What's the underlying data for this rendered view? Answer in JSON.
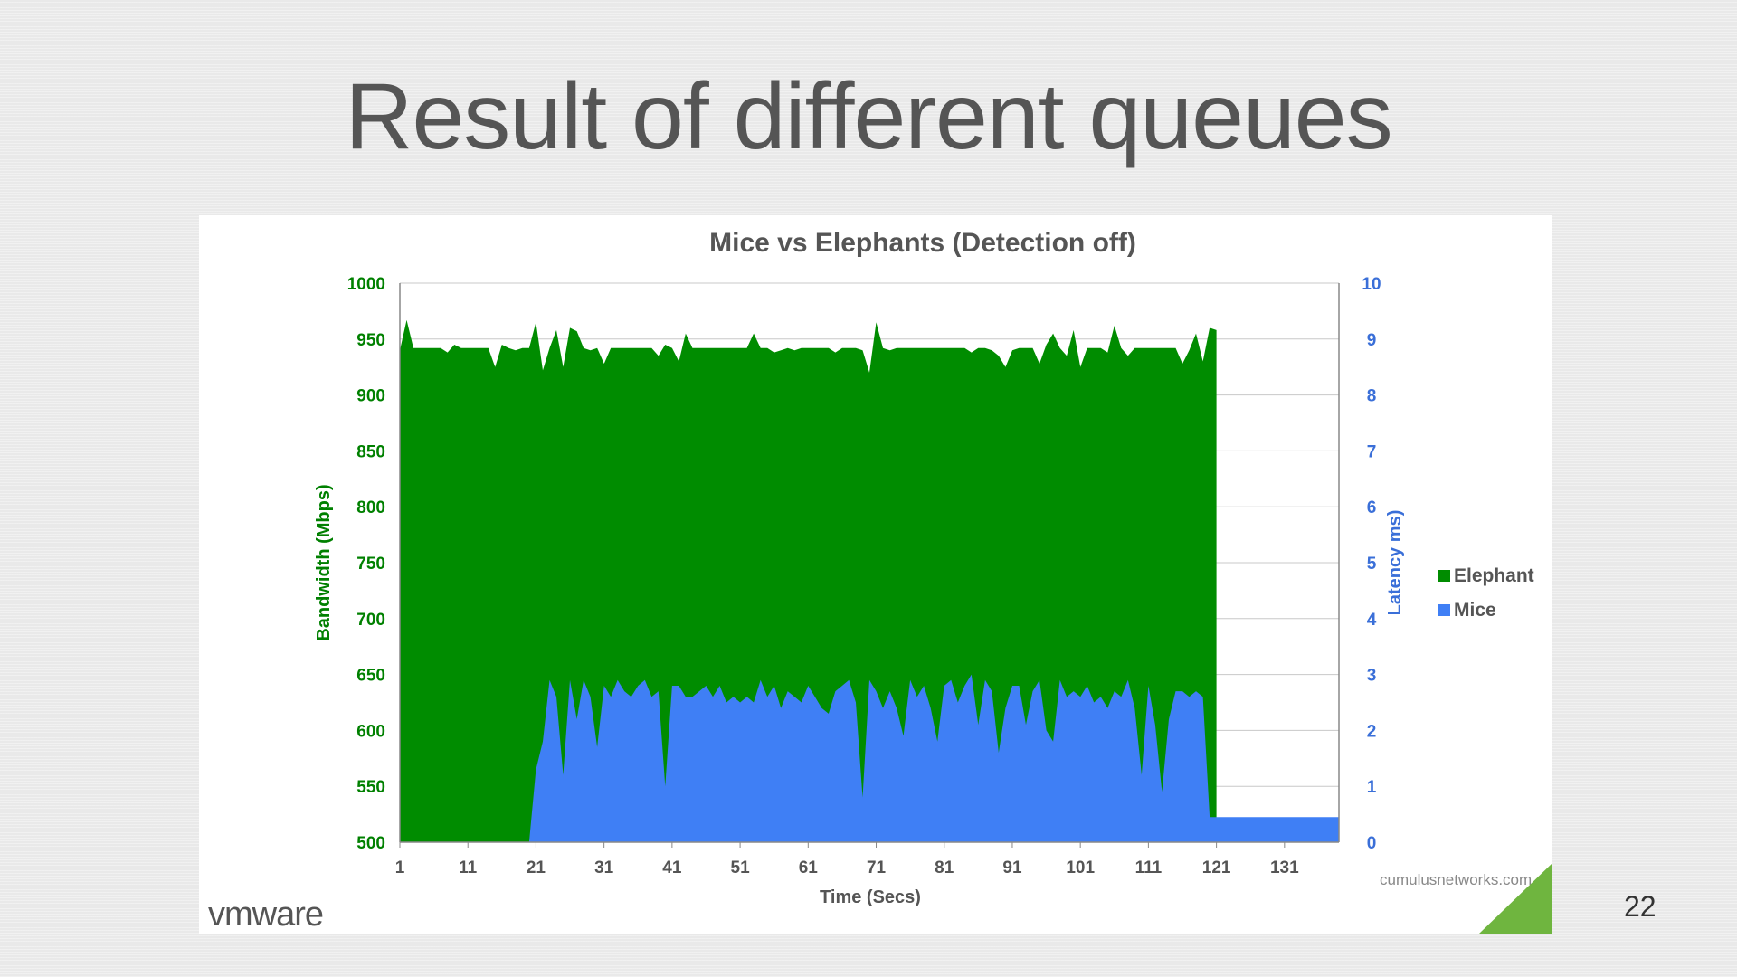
{
  "slide": {
    "title": "Result of different queues",
    "page_number": "22",
    "logo_text": "vmware",
    "credit": "cumulusnetworks.com"
  },
  "colors": {
    "elephant": "#008c00",
    "mice": "#3f7ff5",
    "left_axis": "#008000",
    "right_axis": "#3a6fd8",
    "corner_accent": "#6fb53f"
  },
  "chart_data": {
    "type": "area",
    "title": "Mice vs Elephants (Detection off)",
    "xlabel": "Time (Secs)",
    "ylabel": "Bandwidth (Mbps)",
    "y2label": "Latency ms)",
    "xlim": [
      1,
      139
    ],
    "ylim": [
      500,
      1000
    ],
    "y2lim": [
      0,
      10
    ],
    "x_ticks": [
      "1",
      "11",
      "21",
      "31",
      "41",
      "51",
      "61",
      "71",
      "81",
      "91",
      "101",
      "111",
      "121",
      "131"
    ],
    "y_ticks": [
      "500",
      "550",
      "600",
      "650",
      "700",
      "750",
      "800",
      "850",
      "900",
      "950",
      "1000"
    ],
    "y2_ticks": [
      "0",
      "1",
      "2",
      "3",
      "4",
      "5",
      "6",
      "7",
      "8",
      "9",
      "10"
    ],
    "grid": true,
    "legend_position": "right",
    "series": [
      {
        "name": "Elephant",
        "axis": "left",
        "x": [
          1,
          2,
          3,
          4,
          5,
          6,
          7,
          8,
          9,
          10,
          11,
          12,
          13,
          14,
          15,
          16,
          17,
          18,
          19,
          20,
          21,
          22,
          23,
          24,
          25,
          26,
          27,
          28,
          29,
          30,
          31,
          32,
          33,
          34,
          35,
          36,
          37,
          38,
          39,
          40,
          41,
          42,
          43,
          44,
          45,
          46,
          47,
          48,
          49,
          50,
          51,
          52,
          53,
          54,
          55,
          56,
          57,
          58,
          59,
          60,
          61,
          62,
          63,
          64,
          65,
          66,
          67,
          68,
          69,
          70,
          71,
          72,
          73,
          74,
          75,
          76,
          77,
          78,
          79,
          80,
          81,
          82,
          83,
          84,
          85,
          86,
          87,
          88,
          89,
          90,
          91,
          92,
          93,
          94,
          95,
          96,
          97,
          98,
          99,
          100,
          101,
          102,
          103,
          104,
          105,
          106,
          107,
          108,
          109,
          110,
          111,
          112,
          113,
          114,
          115,
          116,
          117,
          118,
          119,
          120,
          121
        ],
        "values": [
          940,
          967,
          942,
          942,
          942,
          942,
          942,
          938,
          945,
          942,
          942,
          942,
          942,
          942,
          925,
          945,
          942,
          940,
          942,
          942,
          965,
          922,
          942,
          958,
          925,
          960,
          957,
          942,
          940,
          942,
          928,
          942,
          942,
          942,
          942,
          942,
          942,
          942,
          935,
          945,
          942,
          930,
          955,
          942,
          942,
          942,
          942,
          942,
          942,
          942,
          942,
          942,
          955,
          942,
          942,
          938,
          940,
          942,
          940,
          942,
          942,
          942,
          942,
          942,
          938,
          942,
          942,
          942,
          940,
          920,
          965,
          942,
          940,
          942,
          942,
          942,
          942,
          942,
          942,
          942,
          942,
          942,
          942,
          942,
          938,
          942,
          942,
          940,
          935,
          925,
          940,
          942,
          942,
          942,
          928,
          945,
          955,
          942,
          935,
          958,
          925,
          942,
          942,
          942,
          938,
          962,
          942,
          935,
          942,
          942,
          942,
          942,
          942,
          942,
          942,
          928,
          940,
          955,
          930,
          960,
          958
        ]
      },
      {
        "name": "Mice",
        "axis": "right",
        "x": [
          1,
          19,
          20,
          21,
          22,
          23,
          24,
          25,
          26,
          27,
          28,
          29,
          30,
          31,
          32,
          33,
          34,
          35,
          36,
          37,
          38,
          39,
          40,
          41,
          42,
          43,
          44,
          45,
          46,
          47,
          48,
          49,
          50,
          51,
          52,
          53,
          54,
          55,
          56,
          57,
          58,
          59,
          60,
          61,
          62,
          63,
          64,
          65,
          66,
          67,
          68,
          69,
          70,
          71,
          72,
          73,
          74,
          75,
          76,
          77,
          78,
          79,
          80,
          81,
          82,
          83,
          84,
          85,
          86,
          87,
          88,
          89,
          90,
          91,
          92,
          93,
          94,
          95,
          96,
          97,
          98,
          99,
          100,
          101,
          102,
          103,
          104,
          105,
          106,
          107,
          108,
          109,
          110,
          111,
          112,
          113,
          114,
          115,
          116,
          117,
          118,
          119,
          120,
          121,
          122,
          123,
          124,
          125,
          126,
          127,
          128,
          129,
          130,
          131,
          132,
          133,
          134,
          135,
          136,
          137,
          138,
          139
        ],
        "values": [
          0,
          0,
          0,
          1.3,
          1.8,
          2.9,
          2.6,
          1.2,
          2.9,
          2.2,
          2.9,
          2.6,
          1.7,
          2.8,
          2.6,
          2.9,
          2.7,
          2.6,
          2.8,
          2.9,
          2.6,
          2.7,
          1.0,
          2.8,
          2.8,
          2.6,
          2.6,
          2.7,
          2.8,
          2.6,
          2.8,
          2.5,
          2.6,
          2.5,
          2.6,
          2.5,
          2.9,
          2.6,
          2.8,
          2.4,
          2.7,
          2.6,
          2.5,
          2.8,
          2.6,
          2.4,
          2.3,
          2.7,
          2.8,
          2.9,
          2.5,
          0.8,
          2.9,
          2.7,
          2.4,
          2.7,
          2.4,
          1.9,
          2.9,
          2.6,
          2.8,
          2.4,
          1.8,
          2.8,
          2.9,
          2.5,
          2.8,
          3.0,
          2.1,
          2.9,
          2.7,
          1.6,
          2.4,
          2.8,
          2.8,
          2.1,
          2.7,
          2.9,
          2.0,
          1.8,
          2.9,
          2.6,
          2.7,
          2.6,
          2.8,
          2.5,
          2.6,
          2.4,
          2.7,
          2.6,
          2.9,
          2.4,
          1.2,
          2.8,
          2.1,
          0.9,
          2.2,
          2.7,
          2.7,
          2.6,
          2.7,
          2.6,
          0.45,
          0.45,
          0.45,
          0.45,
          0.45,
          0.45,
          0.45,
          0.45,
          0.45,
          0.45,
          0.45,
          0.45,
          0.45,
          0.45,
          0.45,
          0.45,
          0.45,
          0.45,
          0.45,
          0.45
        ]
      }
    ]
  }
}
